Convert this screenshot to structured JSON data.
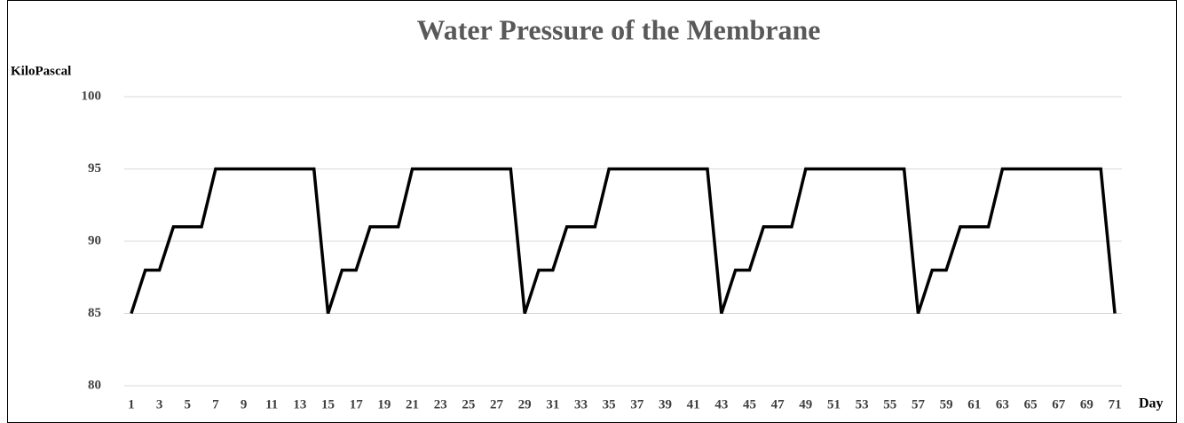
{
  "chart_data": {
    "type": "line",
    "title": "Water Pressure of the Membrane",
    "y_label": "KiloPascal",
    "x_label": "Day",
    "categories": [
      "1",
      null,
      "3",
      null,
      "5",
      null,
      "7",
      null,
      "9",
      null,
      "11",
      null,
      "13",
      null,
      "15",
      null,
      "17",
      null,
      "19",
      null,
      "21",
      null,
      "23",
      null,
      "25",
      null,
      "27",
      null,
      "29",
      null,
      "31",
      null,
      "33",
      null,
      "35",
      null,
      "37",
      null,
      "39",
      null,
      "41",
      null,
      "43",
      null,
      "45",
      null,
      "47",
      null,
      "49",
      null,
      "51",
      null,
      "53",
      null,
      "55",
      null,
      "57",
      null,
      "59",
      null,
      "61",
      null,
      "63",
      null,
      "65",
      null,
      "67",
      null,
      "69",
      null,
      "71"
    ],
    "values": [
      85,
      88,
      88,
      91,
      91,
      91,
      95,
      95,
      95,
      95,
      95,
      95,
      95,
      95,
      85,
      88,
      88,
      91,
      91,
      91,
      95,
      95,
      95,
      95,
      95,
      95,
      95,
      95,
      85,
      88,
      88,
      91,
      91,
      91,
      95,
      95,
      95,
      95,
      95,
      95,
      95,
      95,
      85,
      88,
      88,
      91,
      91,
      91,
      95,
      95,
      95,
      95,
      95,
      95,
      95,
      95,
      85,
      88,
      88,
      91,
      91,
      91,
      95,
      95,
      95,
      95,
      95,
      95,
      95,
      95,
      85
    ],
    "color": "#000000",
    "ylim": [
      80,
      100
    ],
    "yticks": [
      80,
      85,
      90,
      95,
      100
    ],
    "grid": true
  }
}
